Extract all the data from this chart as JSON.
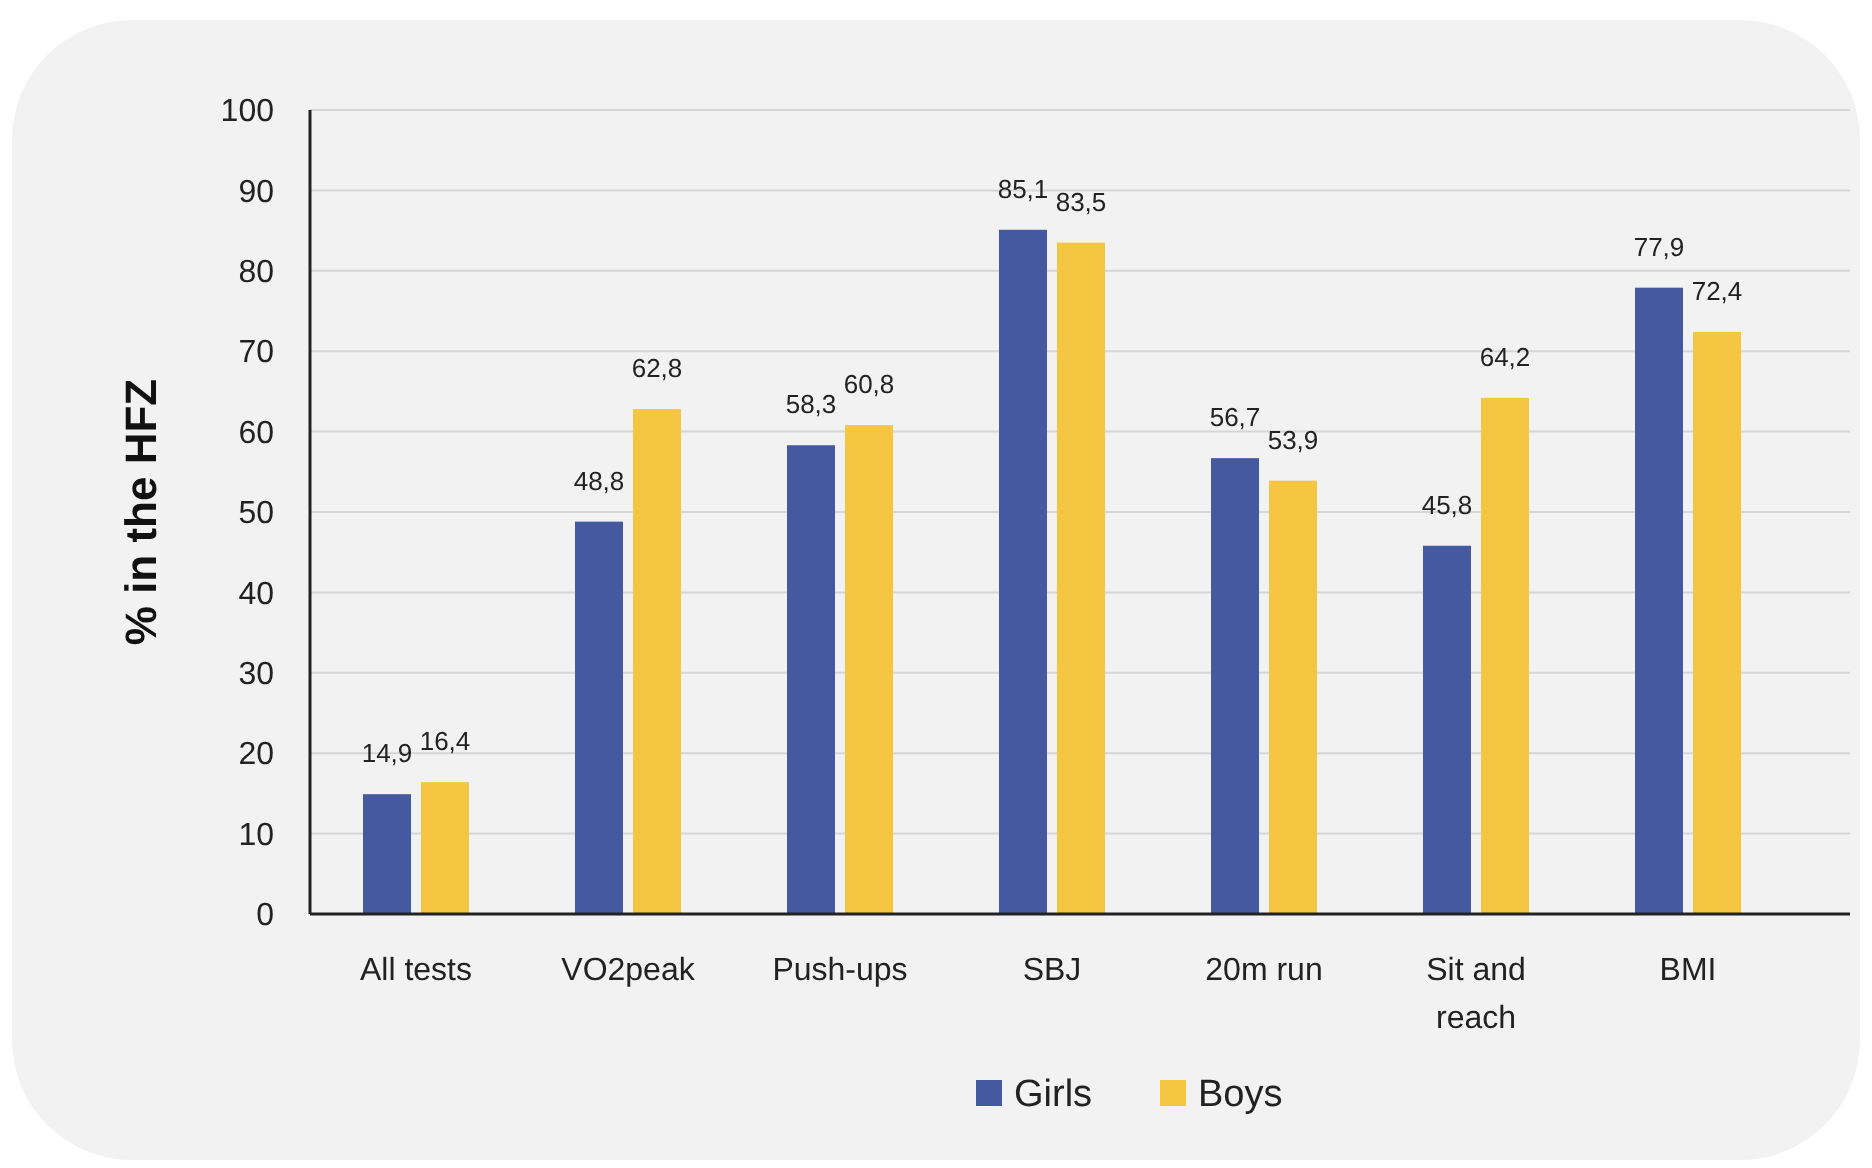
{
  "chart_data": {
    "type": "bar",
    "ylabel": "% in the HFZ",
    "categories": [
      "All tests",
      "VO2peak",
      "Push-ups",
      "SBJ",
      "20m run",
      "Sit and reach",
      "BMI"
    ],
    "series": [
      {
        "name": "Girls",
        "color": "#44599f",
        "values": [
          14.9,
          48.8,
          58.3,
          85.1,
          56.7,
          45.8,
          77.9
        ],
        "value_labels": [
          "14,9",
          "48,8",
          "58,3",
          "85,1",
          "56,7",
          "45,8",
          "77,9"
        ]
      },
      {
        "name": "Boys",
        "color": "#f5c642",
        "values": [
          16.4,
          62.8,
          60.8,
          83.5,
          53.9,
          64.2,
          72.4
        ],
        "value_labels": [
          "16,4",
          "62,8",
          "60,8",
          "83,5",
          "53,9",
          "64,2",
          "72,4"
        ]
      }
    ],
    "ylim": [
      0,
      100
    ],
    "yticks": [
      0,
      10,
      20,
      30,
      40,
      50,
      60,
      70,
      80,
      90,
      100
    ],
    "grid": "y",
    "legend": "bottom"
  }
}
